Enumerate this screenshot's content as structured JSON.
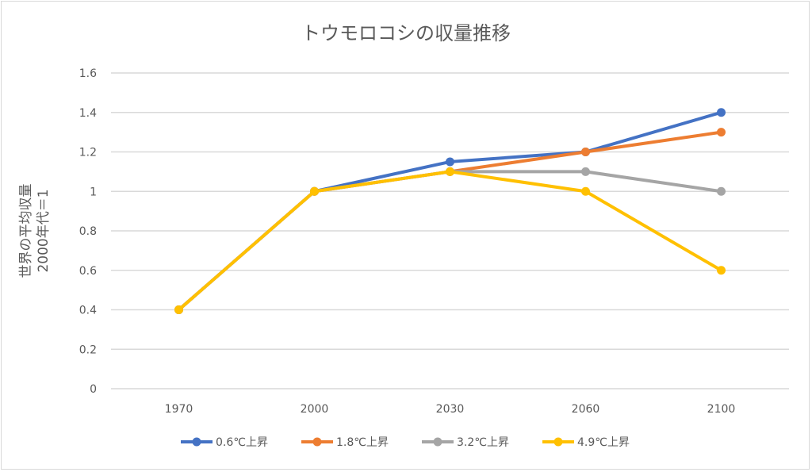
{
  "chart_data": {
    "type": "line",
    "title": "トウモロコシの収量推移",
    "ylabel_lines": [
      "世界の平均収量",
      "2000年代＝1"
    ],
    "xlabel": "",
    "categories": [
      "1970",
      "2000",
      "2030",
      "2060",
      "2100"
    ],
    "ylim": [
      0,
      1.6
    ],
    "yticks": [
      "0",
      "0.2",
      "0.4",
      "0.6",
      "0.8",
      "1",
      "1.2",
      "1.4",
      "1.6"
    ],
    "grid": true,
    "legend_position": "bottom",
    "series": [
      {
        "name": "0.6℃上昇",
        "color": "#4472c4",
        "values": [
          0.4,
          1.0,
          1.15,
          1.2,
          1.4
        ]
      },
      {
        "name": "1.8℃上昇",
        "color": "#ed7d31",
        "values": [
          0.4,
          1.0,
          1.1,
          1.2,
          1.3
        ]
      },
      {
        "name": "3.2℃上昇",
        "color": "#a5a5a5",
        "values": [
          0.4,
          1.0,
          1.1,
          1.1,
          1.0
        ]
      },
      {
        "name": "4.9℃上昇",
        "color": "#ffc000",
        "values": [
          0.4,
          1.0,
          1.1,
          1.0,
          0.6
        ]
      }
    ]
  }
}
